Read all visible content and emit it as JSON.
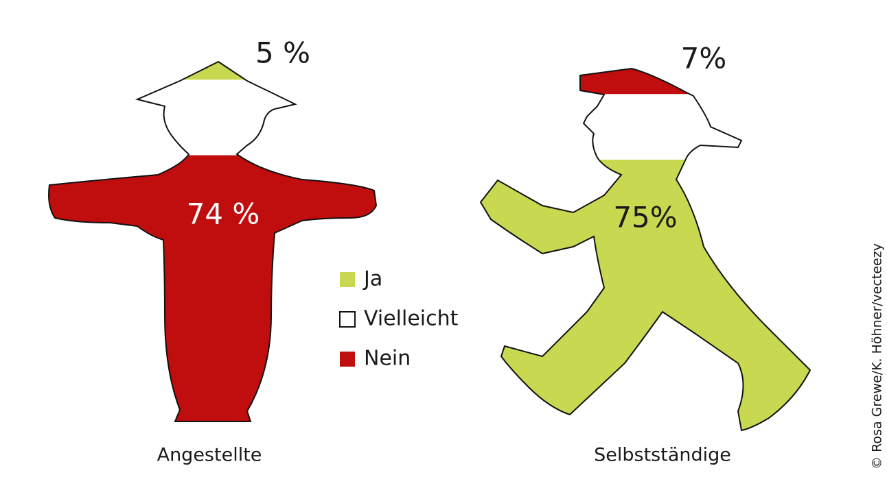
{
  "chart_data": {
    "type": "pictogram",
    "categories": [
      "Angestellte",
      "Selbstständige"
    ],
    "series": [
      {
        "name": "Ja",
        "color": "#c8d850",
        "values": [
          5,
          75
        ],
        "value_labels": [
          "5 %",
          "75%"
        ]
      },
      {
        "name": "Vielleicht",
        "color": "#ffffff",
        "values": [
          21,
          18
        ],
        "value_labels": [
          null,
          null
        ]
      },
      {
        "name": "Nein",
        "color": "#c00d0d",
        "values": [
          74,
          7
        ],
        "value_labels": [
          "74 %",
          "7%"
        ]
      }
    ],
    "stack_order": [
      [
        2,
        1,
        0
      ],
      [
        0,
        1,
        2
      ]
    ],
    "credit": "© Rosa Grewe/K. Höhner/vecteezy"
  }
}
